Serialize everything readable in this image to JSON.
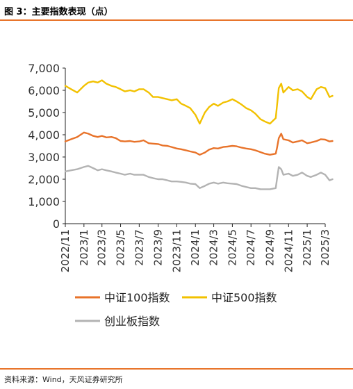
{
  "figure": {
    "title": "图 3：主要指数表现（点）",
    "source": "资料来源：Wind，天风证券研究所"
  },
  "chart_data": {
    "type": "line",
    "x_ticks": [
      "2022/11",
      "2023/1",
      "2023/3",
      "2023/5",
      "2023/7",
      "2023/9",
      "2023/11",
      "2024/1",
      "2024/3",
      "2024/5",
      "2024/7",
      "2024/9",
      "2024/11",
      "2025/1",
      "2025/3"
    ],
    "x_start": "2022/11",
    "x_end": "2025/3",
    "y_ticks": [
      "0",
      "1,000",
      "2,000",
      "3,000",
      "4,000",
      "5,000",
      "6,000",
      "7,000"
    ],
    "ylim": [
      0,
      7000
    ],
    "grid": false,
    "legend_position": "bottom",
    "series": [
      {
        "name": "中证100指数",
        "color": "#e8732a",
        "x": [
          "2022/11/01",
          "2022/11/20",
          "2022/12/10",
          "2023/01/01",
          "2023/01/15",
          "2023/01/31",
          "2023/02/15",
          "2023/03/01",
          "2023/03/15",
          "2023/04/01",
          "2023/04/15",
          "2023/05/01",
          "2023/05/15",
          "2023/06/01",
          "2023/06/15",
          "2023/07/01",
          "2023/07/15",
          "2023/08/01",
          "2023/08/15",
          "2023/09/01",
          "2023/09/15",
          "2023/10/01",
          "2023/10/15",
          "2023/11/01",
          "2023/11/15",
          "2023/12/01",
          "2023/12/15",
          "2024/01/01",
          "2024/01/15",
          "2024/02/01",
          "2024/02/15",
          "2024/03/01",
          "2024/03/15",
          "2024/04/01",
          "2024/04/15",
          "2024/05/01",
          "2024/05/15",
          "2024/06/01",
          "2024/06/15",
          "2024/07/01",
          "2024/07/15",
          "2024/08/01",
          "2024/08/15",
          "2024/09/01",
          "2024/09/20",
          "2024/09/24",
          "2024/09/30",
          "2024/10/08",
          "2024/10/15",
          "2024/11/01",
          "2024/11/15",
          "2024/12/01",
          "2024/12/15",
          "2025/01/01",
          "2025/01/13",
          "2025/02/01",
          "2025/02/15",
          "2025/03/01",
          "2025/03/15",
          "2025/03/25"
        ],
        "y": [
          3700,
          3800,
          3900,
          4100,
          4050,
          3950,
          3900,
          3950,
          3880,
          3900,
          3850,
          3720,
          3700,
          3720,
          3680,
          3700,
          3750,
          3620,
          3600,
          3580,
          3520,
          3500,
          3450,
          3380,
          3350,
          3300,
          3250,
          3200,
          3100,
          3200,
          3330,
          3400,
          3380,
          3450,
          3470,
          3500,
          3480,
          3420,
          3380,
          3350,
          3300,
          3220,
          3150,
          3100,
          3150,
          3400,
          3850,
          4050,
          3800,
          3750,
          3650,
          3700,
          3750,
          3620,
          3650,
          3720,
          3800,
          3780,
          3700,
          3720
        ]
      },
      {
        "name": "中证500指数",
        "color": "#f2c100",
        "x": [
          "2022/11/01",
          "2022/11/20",
          "2022/12/10",
          "2023/01/01",
          "2023/01/15",
          "2023/01/31",
          "2023/02/15",
          "2023/03/01",
          "2023/03/15",
          "2023/04/01",
          "2023/04/15",
          "2023/05/01",
          "2023/05/15",
          "2023/06/01",
          "2023/06/15",
          "2023/07/01",
          "2023/07/15",
          "2023/08/01",
          "2023/08/15",
          "2023/09/01",
          "2023/09/15",
          "2023/10/01",
          "2023/10/15",
          "2023/11/01",
          "2023/11/15",
          "2023/12/01",
          "2023/12/15",
          "2024/01/01",
          "2024/01/15",
          "2024/02/01",
          "2024/02/15",
          "2024/03/01",
          "2024/03/15",
          "2024/04/01",
          "2024/04/15",
          "2024/05/01",
          "2024/05/15",
          "2024/06/01",
          "2024/06/15",
          "2024/07/01",
          "2024/07/15",
          "2024/08/01",
          "2024/08/15",
          "2024/09/01",
          "2024/09/20",
          "2024/09/24",
          "2024/09/30",
          "2024/10/08",
          "2024/10/15",
          "2024/11/01",
          "2024/11/15",
          "2024/12/01",
          "2024/12/15",
          "2025/01/01",
          "2025/01/13",
          "2025/02/01",
          "2025/02/15",
          "2025/03/01",
          "2025/03/15",
          "2025/03/25"
        ],
        "y": [
          6200,
          6050,
          5900,
          6200,
          6350,
          6400,
          6350,
          6450,
          6300,
          6200,
          6150,
          6050,
          5950,
          6000,
          5950,
          6050,
          6050,
          5900,
          5700,
          5700,
          5650,
          5600,
          5550,
          5600,
          5400,
          5300,
          5200,
          4900,
          4500,
          5000,
          5250,
          5400,
          5300,
          5450,
          5500,
          5600,
          5500,
          5350,
          5200,
          5100,
          4950,
          4700,
          4600,
          4500,
          4750,
          5300,
          6100,
          6300,
          5900,
          6150,
          6000,
          6050,
          5950,
          5700,
          5600,
          6050,
          6150,
          6100,
          5700,
          5750
        ]
      },
      {
        "name": "创业板指数",
        "color": "#b3b3b3",
        "x": [
          "2022/11/01",
          "2022/11/20",
          "2022/12/10",
          "2023/01/01",
          "2023/01/15",
          "2023/01/31",
          "2023/02/15",
          "2023/03/01",
          "2023/03/15",
          "2023/04/01",
          "2023/04/15",
          "2023/05/01",
          "2023/05/15",
          "2023/06/01",
          "2023/06/15",
          "2023/07/01",
          "2023/07/15",
          "2023/08/01",
          "2023/08/15",
          "2023/09/01",
          "2023/09/15",
          "2023/10/01",
          "2023/10/15",
          "2023/11/01",
          "2023/11/15",
          "2023/12/01",
          "2023/12/15",
          "2024/01/01",
          "2024/01/15",
          "2024/02/01",
          "2024/02/15",
          "2024/03/01",
          "2024/03/15",
          "2024/04/01",
          "2024/04/15",
          "2024/05/01",
          "2024/05/15",
          "2024/06/01",
          "2024/06/15",
          "2024/07/01",
          "2024/07/15",
          "2024/08/01",
          "2024/08/15",
          "2024/09/01",
          "2024/09/20",
          "2024/09/24",
          "2024/09/30",
          "2024/10/08",
          "2024/10/15",
          "2024/11/01",
          "2024/11/15",
          "2024/12/01",
          "2024/12/15",
          "2025/01/01",
          "2025/01/13",
          "2025/02/01",
          "2025/02/15",
          "2025/03/01",
          "2025/03/15",
          "2025/03/25"
        ],
        "y": [
          2350,
          2400,
          2450,
          2550,
          2600,
          2500,
          2400,
          2450,
          2400,
          2350,
          2300,
          2250,
          2200,
          2250,
          2200,
          2200,
          2200,
          2100,
          2050,
          2000,
          2000,
          1950,
          1900,
          1900,
          1880,
          1850,
          1800,
          1780,
          1600,
          1700,
          1800,
          1850,
          1800,
          1850,
          1820,
          1800,
          1780,
          1700,
          1650,
          1600,
          1600,
          1550,
          1550,
          1550,
          1600,
          2000,
          2550,
          2450,
          2200,
          2250,
          2150,
          2200,
          2300,
          2150,
          2100,
          2200,
          2300,
          2200,
          1950,
          2000
        ]
      }
    ]
  }
}
